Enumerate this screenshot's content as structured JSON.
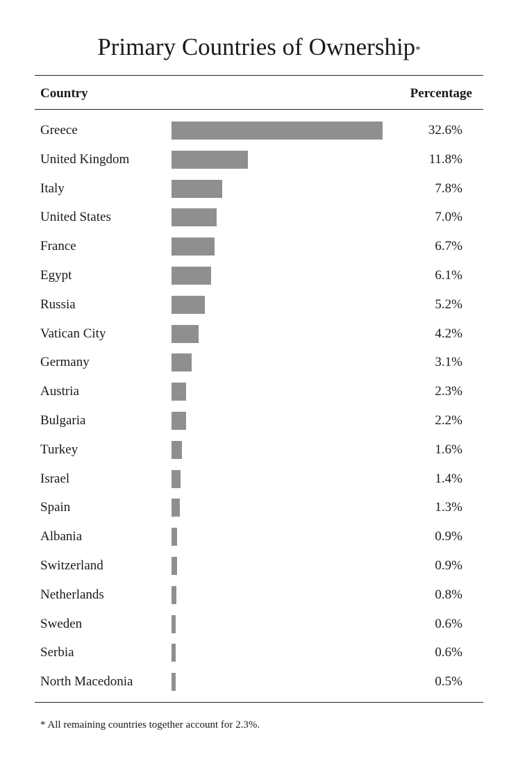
{
  "title": "Primary Countries of Ownership",
  "title_mark": "*",
  "header": {
    "country": "Country",
    "percentage": "Percentage"
  },
  "footnote": "* All remaining countries together account for 2.3%.",
  "colors": {
    "bar": "#8f8f8f",
    "text": "#1a1a1a",
    "rule": "#222222"
  },
  "chart_data": {
    "type": "bar",
    "orientation": "horizontal",
    "title": "Primary Countries of Ownership",
    "xlabel": "Percentage",
    "ylabel": "Country",
    "unit": "%",
    "xlim": [
      0,
      32.6
    ],
    "grid": false,
    "categories": [
      "Greece",
      "United Kingdom",
      "Italy",
      "United States",
      "France",
      "Egypt",
      "Russia",
      "Vatican City",
      "Germany",
      "Austria",
      "Bulgaria",
      "Turkey",
      "Israel",
      "Spain",
      "Albania",
      "Switzerland",
      "Netherlands",
      "Sweden",
      "Serbia",
      "North Macedonia"
    ],
    "values": [
      32.6,
      11.8,
      7.8,
      7.0,
      6.7,
      6.1,
      5.2,
      4.2,
      3.1,
      2.3,
      2.2,
      1.6,
      1.4,
      1.3,
      0.9,
      0.9,
      0.8,
      0.6,
      0.6,
      0.5
    ],
    "labels": [
      "32.6%",
      "11.8%",
      "7.8%",
      "7.0%",
      "6.7%",
      "6.1%",
      "5.2%",
      "4.2%",
      "3.1%",
      "2.3%",
      "2.2%",
      "1.6%",
      "1.4%",
      "1.3%",
      "0.9%",
      "0.9%",
      "0.8%",
      "0.6%",
      "0.6%",
      "0.5%"
    ]
  }
}
